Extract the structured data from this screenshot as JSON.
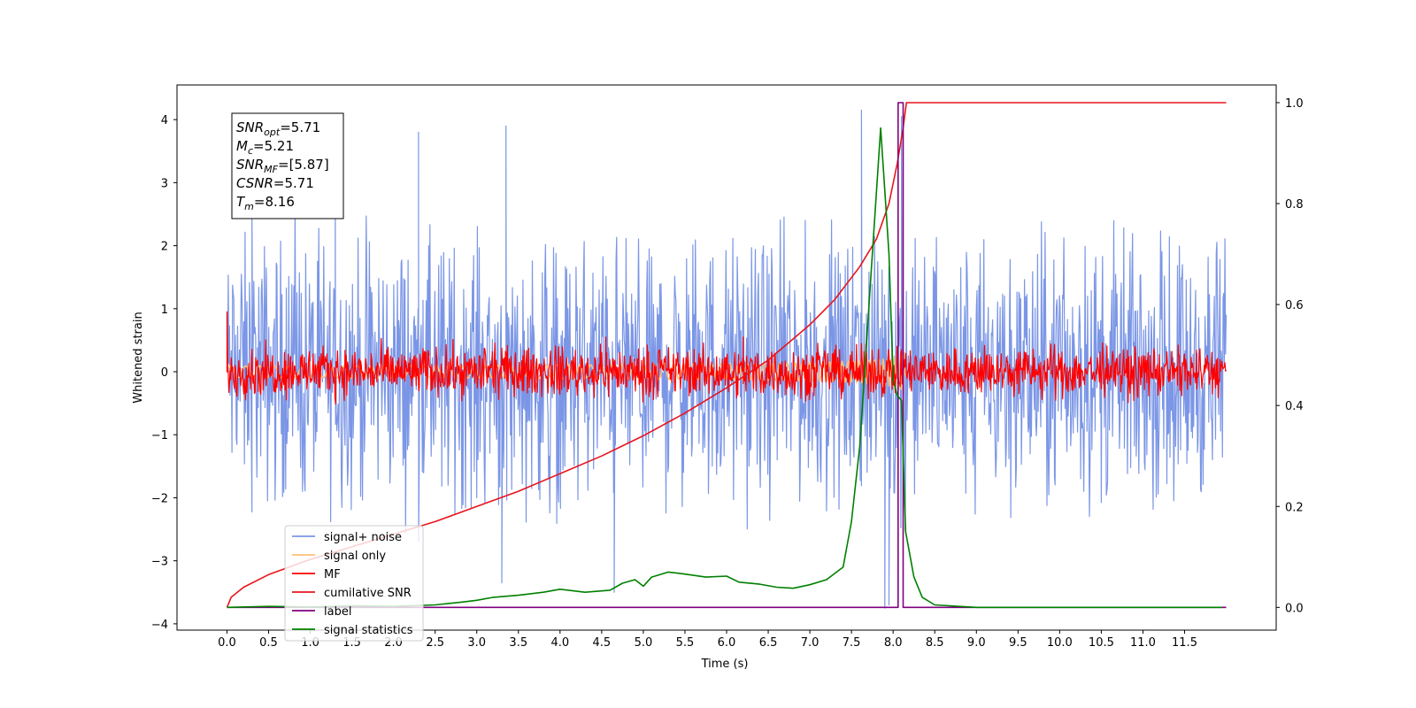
{
  "chart_data": {
    "type": "line",
    "xlabel": "Time (s)",
    "ylabel": "Whitened strain",
    "xlim": [
      -0.6,
      12.6
    ],
    "ylim": [
      -4.1,
      4.55
    ],
    "y2lim": [
      -0.045,
      1.035
    ],
    "x_ticks": [
      0.0,
      0.5,
      1.0,
      1.5,
      2.0,
      2.5,
      3.0,
      3.5,
      4.0,
      4.5,
      5.0,
      5.5,
      6.0,
      6.5,
      7.0,
      7.5,
      8.0,
      8.5,
      9.0,
      9.5,
      10.0,
      10.5,
      11.0,
      11.5
    ],
    "x_tick_labels": [
      "0.0",
      "0.5",
      "1.0",
      "1.5",
      "2.0",
      "2.5",
      "3.0",
      "3.5",
      "4.0",
      "4.5",
      "5.0",
      "5.5",
      "6.0",
      "6.5",
      "7.0",
      "7.5",
      "8.0",
      "8.5",
      "9.0",
      "9.5",
      "10.0",
      "10.5",
      "11.0",
      "11.5"
    ],
    "y_ticks": [
      -4,
      -3,
      -2,
      -1,
      0,
      1,
      2,
      3,
      4
    ],
    "y_tick_labels": [
      "−4",
      "−3",
      "−2",
      "−1",
      "0",
      "1",
      "2",
      "3",
      "4"
    ],
    "y2_ticks": [
      0.0,
      0.2,
      0.4,
      0.6,
      0.8,
      1.0
    ],
    "y2_tick_labels": [
      "0.0",
      "0.2",
      "0.4",
      "0.6",
      "0.8",
      "1.0"
    ],
    "grid": false,
    "legend_position": "lower-left",
    "legend": [
      {
        "label": "signal+ noise",
        "color": "#7b96e6"
      },
      {
        "label": "signal only",
        "color": "#ffc07a"
      },
      {
        "label": "MF",
        "color": "#ff0000"
      },
      {
        "label": "cumilative SNR",
        "color": "#e8141c"
      },
      {
        "label": "label",
        "color": "#800080"
      },
      {
        "label": "signal statistics",
        "color": "#008000"
      }
    ],
    "annotation": [
      {
        "base": "SNR",
        "sub": "opt",
        "value": "=5.71"
      },
      {
        "base": "M",
        "sub": "c",
        "value": "=5.21"
      },
      {
        "base": "SNR",
        "sub": "MF",
        "value": "=[5.87]"
      },
      {
        "base": "CSNR",
        "sub": "",
        "value": "=5.71"
      },
      {
        "base": "T",
        "sub": "m",
        "value": "=8.16"
      }
    ],
    "series": [
      {
        "name": "signal+ noise",
        "axis": "left",
        "color": "#7b96e6",
        "style": "noise",
        "x_range": [
          0.0,
          12.0
        ],
        "center": 0.0,
        "amplitude": 0.9,
        "peaks": [
          [
            0.3,
            2.6
          ],
          [
            1.3,
            3.1
          ],
          [
            2.3,
            3.8
          ],
          [
            3.35,
            3.9
          ],
          [
            7.62,
            4.15
          ],
          [
            8.1,
            4.05
          ],
          [
            3.3,
            -3.35
          ],
          [
            4.65,
            -3.5
          ],
          [
            7.9,
            -3.75
          ],
          [
            7.95,
            -3.7
          ]
        ]
      },
      {
        "name": "signal only",
        "axis": "left",
        "color": "#ffc07a",
        "style": "chirp",
        "x_range": [
          0.0,
          8.16
        ],
        "amplitude": 0.35
      },
      {
        "name": "MF",
        "axis": "left",
        "color": "#ff0000",
        "style": "noise",
        "x_range": [
          0.0,
          12.0
        ],
        "center": 0.0,
        "amplitude": 0.17,
        "peaks": [
          [
            0.0,
            0.95
          ],
          [
            4.55,
            0.55
          ],
          [
            6.2,
            0.55
          ],
          [
            8.1,
            0.35
          ]
        ]
      },
      {
        "name": "cumilative SNR",
        "axis": "right",
        "color": "#e8141c",
        "x": [
          0.0,
          0.05,
          0.2,
          0.5,
          1.0,
          1.5,
          2.0,
          2.5,
          3.0,
          3.5,
          4.0,
          4.5,
          5.0,
          5.5,
          6.0,
          6.5,
          7.0,
          7.3,
          7.6,
          7.8,
          7.95,
          8.05,
          8.12,
          8.16,
          8.2,
          9.0,
          10.0,
          11.0,
          12.0
        ],
        "y": [
          0.0,
          0.02,
          0.04,
          0.065,
          0.095,
          0.12,
          0.145,
          0.17,
          0.2,
          0.23,
          0.265,
          0.3,
          0.34,
          0.385,
          0.435,
          0.49,
          0.56,
          0.61,
          0.675,
          0.73,
          0.8,
          0.88,
          0.95,
          1.0,
          1.0,
          1.0,
          1.0,
          1.0,
          1.0
        ]
      },
      {
        "name": "label",
        "axis": "right",
        "color": "#800080",
        "x": [
          0.0,
          8.0,
          8.0,
          8.06,
          8.06,
          8.12,
          8.12,
          8.18,
          8.18,
          12.0
        ],
        "y": [
          0.0,
          0.0,
          0.0,
          0.0,
          1.0,
          1.0,
          0.0,
          0.0,
          0.0,
          0.0
        ]
      },
      {
        "name": "signal statistics",
        "axis": "right",
        "color": "#008000",
        "x": [
          0.0,
          0.5,
          1.0,
          1.5,
          2.0,
          2.5,
          2.8,
          3.0,
          3.2,
          3.5,
          3.8,
          4.0,
          4.3,
          4.6,
          4.75,
          4.9,
          5.0,
          5.1,
          5.3,
          5.5,
          5.75,
          6.0,
          6.15,
          6.4,
          6.6,
          6.8,
          7.0,
          7.2,
          7.4,
          7.5,
          7.6,
          7.75,
          7.85,
          7.95,
          8.0,
          8.05,
          8.1,
          8.15,
          8.25,
          8.35,
          8.5,
          9.0,
          10.0,
          11.0,
          11.95
        ],
        "y": [
          0.0,
          0.002,
          0.001,
          0.003,
          0.002,
          0.005,
          0.01,
          0.014,
          0.02,
          0.024,
          0.03,
          0.036,
          0.03,
          0.034,
          0.048,
          0.055,
          0.042,
          0.06,
          0.07,
          0.066,
          0.06,
          0.062,
          0.05,
          0.046,
          0.04,
          0.038,
          0.045,
          0.055,
          0.08,
          0.17,
          0.32,
          0.7,
          0.95,
          0.7,
          0.45,
          0.42,
          0.41,
          0.15,
          0.06,
          0.02,
          0.005,
          0.0,
          0.0,
          0.0,
          0.0
        ]
      }
    ]
  }
}
